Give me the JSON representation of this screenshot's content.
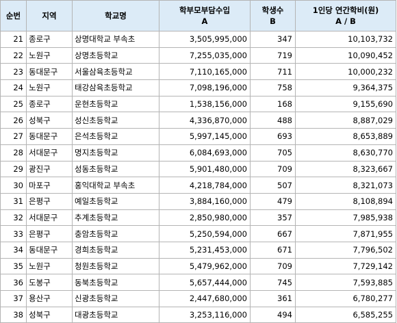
{
  "headers": {
    "rank": "순번",
    "region": "지역",
    "school": "학교명",
    "parent_burden": "학부모부담수입",
    "parent_burden_sub": "A",
    "students": "학생수",
    "students_sub": "B",
    "per_student": "1인당 연간학비(원)",
    "per_student_sub": "A / B"
  },
  "rows": [
    {
      "rank": "21",
      "region": "종로구",
      "school": "상명대학교 부속초",
      "parent_burden": "3,505,995,000",
      "students": "347",
      "per_student": "10,103,732"
    },
    {
      "rank": "22",
      "region": "노원구",
      "school": "상명초등학교",
      "parent_burden": "7,255,035,000",
      "students": "719",
      "per_student": "10,090,452"
    },
    {
      "rank": "23",
      "region": "동대문구",
      "school": "서울삼육초등학교",
      "parent_burden": "7,110,165,000",
      "students": "711",
      "per_student": "10,000,232"
    },
    {
      "rank": "24",
      "region": "노원구",
      "school": "태강삼육초등학교",
      "parent_burden": "7,098,196,000",
      "students": "758",
      "per_student": "9,364,375"
    },
    {
      "rank": "25",
      "region": "종로구",
      "school": "운현초등학교",
      "parent_burden": "1,538,156,000",
      "students": "168",
      "per_student": "9,155,690"
    },
    {
      "rank": "26",
      "region": "성북구",
      "school": "성신초등학교",
      "parent_burden": "4,336,870,000",
      "students": "488",
      "per_student": "8,887,029"
    },
    {
      "rank": "27",
      "region": "동대문구",
      "school": "은석초등학교",
      "parent_burden": "5,997,145,000",
      "students": "693",
      "per_student": "8,653,889"
    },
    {
      "rank": "28",
      "region": "서대문구",
      "school": "명지초등학교",
      "parent_burden": "6,084,693,000",
      "students": "705",
      "per_student": "8,630,770"
    },
    {
      "rank": "29",
      "region": "광진구",
      "school": "성동초등학교",
      "parent_burden": "5,901,480,000",
      "students": "709",
      "per_student": "8,323,667"
    },
    {
      "rank": "30",
      "region": "마포구",
      "school": "홍익대학교 부속초",
      "parent_burden": "4,218,784,000",
      "students": "507",
      "per_student": "8,321,073"
    },
    {
      "rank": "31",
      "region": "은평구",
      "school": "예일초등학교",
      "parent_burden": "3,884,160,000",
      "students": "479",
      "per_student": "8,108,894"
    },
    {
      "rank": "32",
      "region": "서대문구",
      "school": "추계초등학교",
      "parent_burden": "2,850,980,000",
      "students": "357",
      "per_student": "7,985,938"
    },
    {
      "rank": "33",
      "region": "은평구",
      "school": "충암초등학교",
      "parent_burden": "5,250,594,000",
      "students": "667",
      "per_student": "7,871,955"
    },
    {
      "rank": "34",
      "region": "동대문구",
      "school": "경희초등학교",
      "parent_burden": "5,231,453,000",
      "students": "671",
      "per_student": "7,796,502"
    },
    {
      "rank": "35",
      "region": "노원구",
      "school": "청원초등학교",
      "parent_burden": "5,479,962,000",
      "students": "709",
      "per_student": "7,729,142"
    },
    {
      "rank": "36",
      "region": "도봉구",
      "school": "동북초등학교",
      "parent_burden": "5,657,444,000",
      "students": "745",
      "per_student": "7,593,885"
    },
    {
      "rank": "37",
      "region": "용산구",
      "school": "신광초등학교",
      "parent_burden": "2,447,680,000",
      "students": "361",
      "per_student": "6,780,277"
    },
    {
      "rank": "38",
      "region": "성북구",
      "school": "대광초등학교",
      "parent_burden": "3,253,116,000",
      "students": "494",
      "per_student": "6,585,255"
    }
  ]
}
